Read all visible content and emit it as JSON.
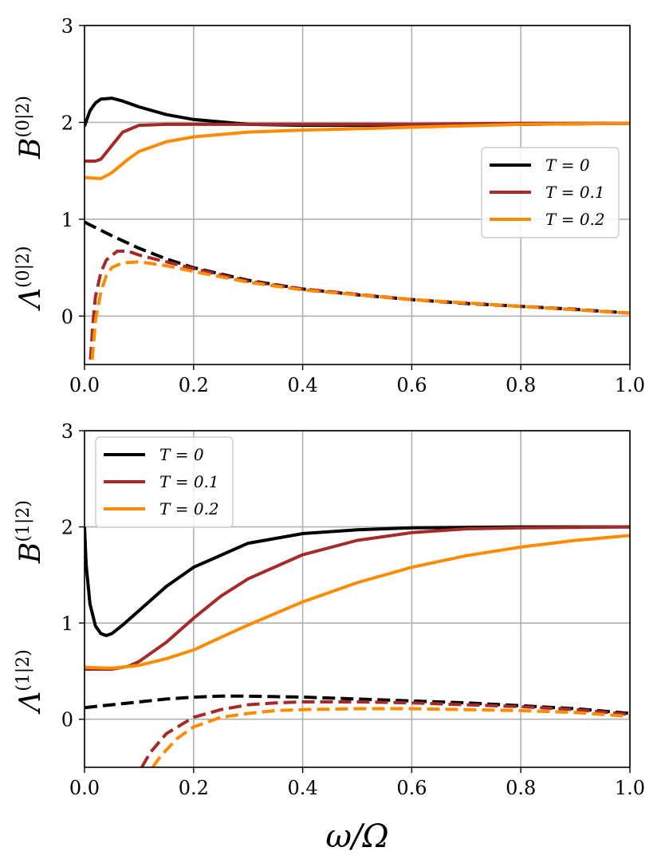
{
  "chart_data": [
    {
      "type": "line",
      "xlim": [
        0.0,
        1.0
      ],
      "ylim": [
        -0.5,
        3.0
      ],
      "xticks": [
        "0.0",
        "0.2",
        "0.4",
        "0.6",
        "0.8",
        "1.0"
      ],
      "yticks": [
        "0",
        "1",
        "2",
        "3"
      ],
      "ylabel_upper": "B^(0|2)",
      "ylabel_lower": "Λ^(0|2)",
      "grid": true,
      "legend": "center-right",
      "series": [
        {
          "name": "T = 0",
          "color": "#000000",
          "dash": "solid",
          "x": [
            0.0,
            0.01,
            0.02,
            0.03,
            0.05,
            0.07,
            0.1,
            0.15,
            0.2,
            0.3,
            0.4,
            0.6,
            0.8,
            1.0
          ],
          "y": [
            1.96,
            2.12,
            2.2,
            2.24,
            2.25,
            2.22,
            2.16,
            2.08,
            2.03,
            1.98,
            1.97,
            1.97,
            1.98,
            1.99
          ]
        },
        {
          "name": "T = 0.1",
          "color": "#A52A2A",
          "dash": "solid",
          "x": [
            0.0,
            0.02,
            0.03,
            0.05,
            0.07,
            0.1,
            0.15,
            0.2,
            0.4,
            0.6,
            0.8,
            1.0
          ],
          "y": [
            1.6,
            1.6,
            1.62,
            1.76,
            1.9,
            1.97,
            1.98,
            1.98,
            1.98,
            1.98,
            1.99,
            1.99
          ]
        },
        {
          "name": "T = 0.2",
          "color": "#FF8C00",
          "dash": "solid",
          "x": [
            0.0,
            0.03,
            0.05,
            0.08,
            0.1,
            0.15,
            0.2,
            0.3,
            0.4,
            0.6,
            0.8,
            1.0
          ],
          "y": [
            1.43,
            1.42,
            1.48,
            1.62,
            1.7,
            1.8,
            1.85,
            1.9,
            1.92,
            1.95,
            1.98,
            1.99
          ]
        },
        {
          "name": "",
          "color": "#000000",
          "dash": "dashed",
          "x": [
            0.0,
            0.05,
            0.1,
            0.15,
            0.2,
            0.3,
            0.4,
            0.5,
            0.6,
            0.7,
            0.8,
            0.9,
            1.0
          ],
          "y": [
            0.97,
            0.83,
            0.7,
            0.59,
            0.5,
            0.37,
            0.28,
            0.22,
            0.17,
            0.13,
            0.1,
            0.07,
            0.03
          ]
        },
        {
          "name": "",
          "color": "#A52A2A",
          "dash": "dashed",
          "x": [
            0.011,
            0.015,
            0.02,
            0.03,
            0.04,
            0.06,
            0.08,
            0.1,
            0.15,
            0.2,
            0.3,
            0.4,
            0.6,
            0.8,
            1.0
          ],
          "y": [
            -0.45,
            -0.1,
            0.2,
            0.45,
            0.58,
            0.67,
            0.67,
            0.63,
            0.56,
            0.49,
            0.36,
            0.28,
            0.17,
            0.1,
            0.03
          ]
        },
        {
          "name": "",
          "color": "#FF8C00",
          "dash": "dashed",
          "x": [
            0.014,
            0.02,
            0.03,
            0.04,
            0.05,
            0.07,
            0.1,
            0.15,
            0.2,
            0.3,
            0.4,
            0.6,
            0.8,
            1.0
          ],
          "y": [
            -0.45,
            -0.05,
            0.25,
            0.42,
            0.5,
            0.55,
            0.56,
            0.52,
            0.46,
            0.35,
            0.27,
            0.17,
            0.1,
            0.03
          ]
        }
      ]
    },
    {
      "type": "line",
      "xlim": [
        0.0,
        1.0
      ],
      "ylim": [
        -0.5,
        3.0
      ],
      "xticks": [
        "0.0",
        "0.2",
        "0.4",
        "0.6",
        "0.8",
        "1.0"
      ],
      "yticks": [
        "0",
        "1",
        "2",
        "3"
      ],
      "xlabel": "ω/Ω",
      "ylabel_upper": "B^(1|2)",
      "ylabel_lower": "Λ^(1|2)",
      "grid": true,
      "legend": "upper-left",
      "series": [
        {
          "name": "T = 0",
          "color": "#000000",
          "dash": "solid",
          "x": [
            0.0,
            0.003,
            0.01,
            0.02,
            0.03,
            0.04,
            0.05,
            0.07,
            0.1,
            0.15,
            0.2,
            0.3,
            0.4,
            0.5,
            0.6,
            0.8,
            1.0
          ],
          "y": [
            2.0,
            1.6,
            1.2,
            0.97,
            0.89,
            0.87,
            0.89,
            0.98,
            1.13,
            1.38,
            1.58,
            1.83,
            1.93,
            1.97,
            1.99,
            2.0,
            2.0
          ]
        },
        {
          "name": "T = 0.1",
          "color": "#A52A2A",
          "dash": "solid",
          "x": [
            0.0,
            0.05,
            0.08,
            0.1,
            0.15,
            0.2,
            0.25,
            0.3,
            0.4,
            0.5,
            0.6,
            0.7,
            0.8,
            1.0
          ],
          "y": [
            0.52,
            0.52,
            0.55,
            0.6,
            0.8,
            1.05,
            1.28,
            1.46,
            1.71,
            1.86,
            1.94,
            1.98,
            1.99,
            2.0
          ]
        },
        {
          "name": "T = 0.2",
          "color": "#FF8C00",
          "dash": "solid",
          "x": [
            0.0,
            0.05,
            0.1,
            0.15,
            0.2,
            0.25,
            0.3,
            0.4,
            0.5,
            0.6,
            0.7,
            0.8,
            0.9,
            1.0
          ],
          "y": [
            0.54,
            0.53,
            0.56,
            0.63,
            0.72,
            0.85,
            0.98,
            1.22,
            1.42,
            1.58,
            1.7,
            1.79,
            1.86,
            1.91
          ]
        },
        {
          "name": "",
          "color": "#000000",
          "dash": "dashed",
          "x": [
            0.0,
            0.05,
            0.1,
            0.15,
            0.2,
            0.25,
            0.3,
            0.4,
            0.5,
            0.6,
            0.7,
            0.8,
            0.9,
            1.0
          ],
          "y": [
            0.12,
            0.15,
            0.18,
            0.21,
            0.23,
            0.24,
            0.24,
            0.23,
            0.21,
            0.19,
            0.17,
            0.14,
            0.11,
            0.06
          ]
        },
        {
          "name": "",
          "color": "#A52A2A",
          "dash": "dashed",
          "x": [
            0.105,
            0.12,
            0.15,
            0.2,
            0.25,
            0.3,
            0.35,
            0.4,
            0.5,
            0.6,
            0.7,
            0.8,
            0.9,
            1.0
          ],
          "y": [
            -0.5,
            -0.35,
            -0.15,
            0.02,
            0.1,
            0.15,
            0.17,
            0.18,
            0.18,
            0.17,
            0.15,
            0.13,
            0.1,
            0.05
          ]
        },
        {
          "name": "",
          "color": "#FF8C00",
          "dash": "dashed",
          "x": [
            0.125,
            0.14,
            0.17,
            0.2,
            0.25,
            0.3,
            0.35,
            0.4,
            0.5,
            0.6,
            0.7,
            0.8,
            0.9,
            1.0
          ],
          "y": [
            -0.5,
            -0.38,
            -0.2,
            -0.08,
            0.02,
            0.06,
            0.09,
            0.1,
            0.11,
            0.11,
            0.1,
            0.09,
            0.07,
            0.03
          ]
        }
      ]
    }
  ]
}
